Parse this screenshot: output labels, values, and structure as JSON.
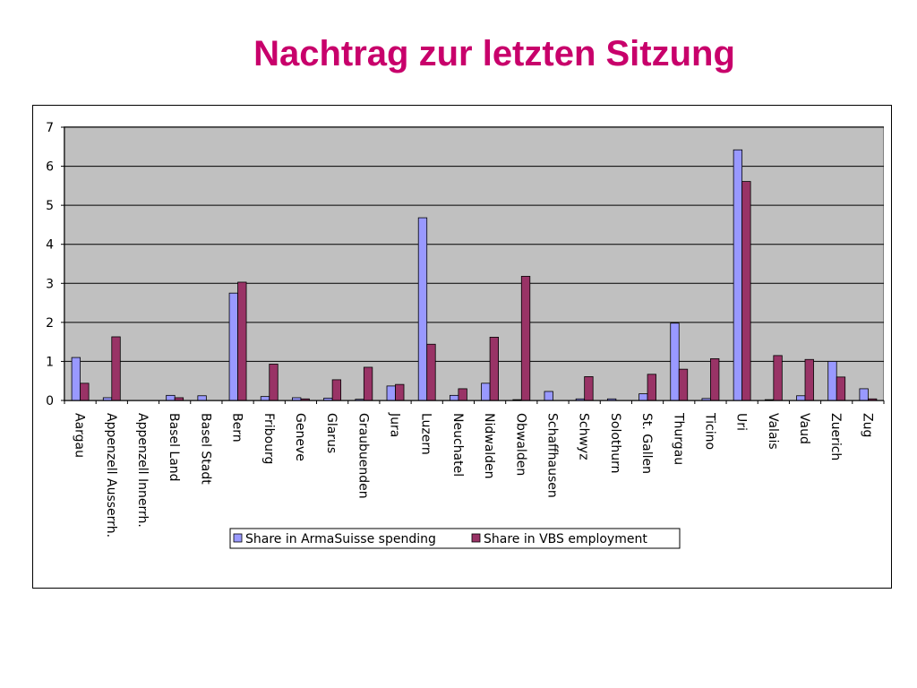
{
  "slide": {
    "title": "Nachtrag zur letzten Sitzung"
  },
  "chart_data": {
    "type": "bar",
    "title": "",
    "xlabel": "",
    "ylabel": "",
    "ylim": [
      0,
      7
    ],
    "yticks": [
      0,
      1,
      2,
      3,
      4,
      5,
      6,
      7
    ],
    "grid": true,
    "legend_position": "bottom",
    "categories": [
      "Aargau",
      "Appenzell Ausserrh.",
      "Appenzell Innerrh.",
      "Basel Land",
      "Basel Stadt",
      "Bern",
      "Fribourg",
      "Geneve",
      "Glarus",
      "Graubuenden",
      "Jura",
      "Luzern",
      "Neuchatel",
      "Nidwalden",
      "Obwalden",
      "Schaffhausen",
      "Schwyz",
      "Solothurn",
      "St. Gallen",
      "Thurgau",
      "Ticino",
      "Uri",
      "Valais",
      "Vaud",
      "Zuerich",
      "Zug"
    ],
    "series": [
      {
        "name": "Share in ArmaSuisse spending",
        "color": "#9999ff",
        "values": [
          1.1,
          0.07,
          0.0,
          0.13,
          0.12,
          2.75,
          0.1,
          0.07,
          0.06,
          0.03,
          0.37,
          4.68,
          0.13,
          0.44,
          0.02,
          0.23,
          0.04,
          0.04,
          0.17,
          1.98,
          0.05,
          6.42,
          0.02,
          0.12,
          1.0,
          0.3
        ]
      },
      {
        "name": "Share in VBS employment",
        "color": "#993366",
        "values": [
          0.44,
          1.63,
          0.0,
          0.07,
          0.0,
          3.03,
          0.93,
          0.04,
          0.53,
          0.85,
          0.41,
          1.44,
          0.3,
          1.62,
          3.18,
          0.0,
          0.61,
          0.0,
          0.67,
          0.8,
          1.07,
          5.61,
          1.15,
          1.05,
          0.6,
          0.04
        ]
      }
    ]
  }
}
